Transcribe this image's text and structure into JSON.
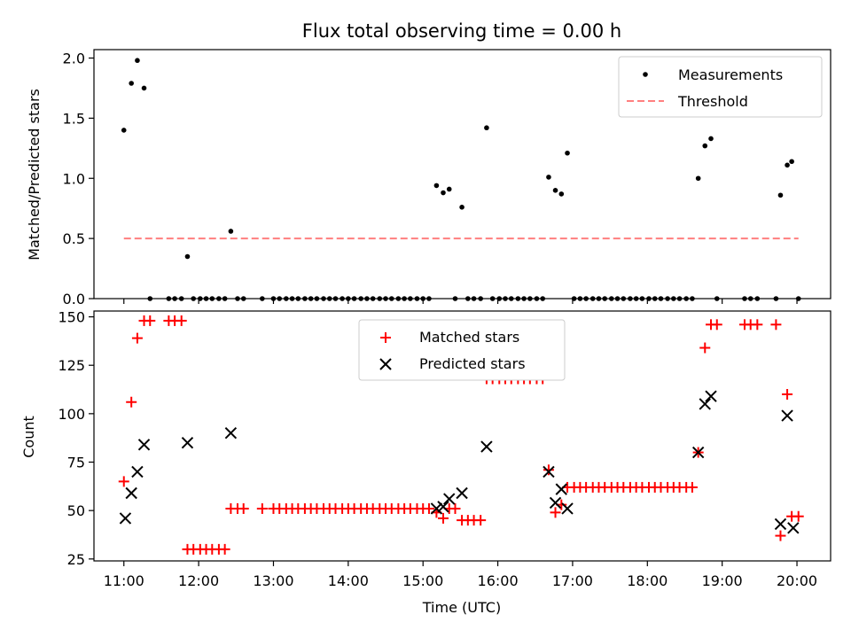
{
  "figure": {
    "title": "Flux total observing time = 0.00 h",
    "xlabel": "Time (UTC)"
  },
  "chart_data": [
    {
      "type": "scatter",
      "panel": "top",
      "title": "Flux total observing time = 0.00 h",
      "ylabel": "Matched/Predicted stars",
      "xlabel": "",
      "xlim": [
        10.6,
        20.45
      ],
      "ylim": [
        0,
        2.07
      ],
      "yticks": [
        0.0,
        0.5,
        1.0,
        1.5,
        2.0
      ],
      "ytick_labels": [
        "0.0",
        "0.5",
        "1.0",
        "1.5",
        "2.0"
      ],
      "xticks": [
        11,
        12,
        13,
        14,
        15,
        16,
        17,
        18,
        19,
        20
      ],
      "legend_position": "top-right",
      "grid": false,
      "series": [
        {
          "name": "Measurements",
          "kind": "points",
          "color": "#000000",
          "x": [
            11.0,
            11.1,
            11.18,
            11.27,
            11.35,
            11.6,
            11.68,
            11.77,
            11.85,
            11.93,
            12.02,
            12.1,
            12.18,
            12.27,
            12.35,
            12.43,
            12.52,
            12.6,
            12.85,
            13.0,
            13.08,
            13.17,
            13.25,
            13.33,
            13.42,
            13.5,
            13.58,
            13.67,
            13.75,
            13.83,
            13.92,
            14.0,
            14.08,
            14.17,
            14.25,
            14.33,
            14.42,
            14.5,
            14.58,
            14.67,
            14.75,
            14.83,
            14.92,
            15.0,
            15.08,
            15.18,
            15.27,
            15.35,
            15.43,
            15.52,
            15.6,
            15.68,
            15.77,
            15.85,
            15.93,
            16.02,
            16.1,
            16.18,
            16.27,
            16.35,
            16.43,
            16.52,
            16.6,
            16.68,
            16.77,
            16.85,
            16.93,
            17.02,
            17.1,
            17.18,
            17.27,
            17.35,
            17.43,
            17.52,
            17.6,
            17.68,
            17.77,
            17.85,
            17.93,
            18.02,
            18.1,
            18.18,
            18.27,
            18.35,
            18.43,
            18.52,
            18.6,
            18.68,
            18.77,
            18.85,
            18.93,
            19.3,
            19.38,
            19.47,
            19.72,
            19.78,
            19.87,
            19.93,
            20.02
          ],
          "y": [
            1.4,
            1.79,
            1.98,
            1.75,
            0.0,
            0.0,
            0.0,
            0.0,
            0.35,
            0.0,
            0.0,
            0.0,
            0.0,
            0.0,
            0.0,
            0.56,
            0.0,
            0.0,
            0.0,
            0.0,
            0.0,
            0.0,
            0.0,
            0.0,
            0.0,
            0.0,
            0.0,
            0.0,
            0.0,
            0.0,
            0.0,
            0.0,
            0.0,
            0.0,
            0.0,
            0.0,
            0.0,
            0.0,
            0.0,
            0.0,
            0.0,
            0.0,
            0.0,
            0.0,
            0.0,
            0.94,
            0.88,
            0.91,
            0.0,
            0.76,
            0.0,
            0.0,
            0.0,
            1.42,
            0.0,
            0.0,
            0.0,
            0.0,
            0.0,
            0.0,
            0.0,
            0.0,
            0.0,
            1.01,
            0.9,
            0.87,
            1.21,
            0.0,
            0.0,
            0.0,
            0.0,
            0.0,
            0.0,
            0.0,
            0.0,
            0.0,
            0.0,
            0.0,
            0.0,
            0.0,
            0.0,
            0.0,
            0.0,
            0.0,
            0.0,
            0.0,
            0.0,
            1.0,
            1.27,
            1.33,
            0.0,
            0.0,
            0.0,
            0.0,
            0.0,
            0.86,
            1.11,
            1.14,
            0.0
          ]
        },
        {
          "name": "Threshold",
          "kind": "dashed-line",
          "color": "#ff7f7f",
          "x": [
            11.0,
            20.02
          ],
          "y": [
            0.5,
            0.5
          ]
        }
      ]
    },
    {
      "type": "scatter",
      "panel": "bottom",
      "title": "",
      "ylabel": "Count",
      "xlabel": "Time (UTC)",
      "xlim": [
        10.6,
        20.45
      ],
      "ylim": [
        24,
        153
      ],
      "yticks": [
        25,
        50,
        75,
        100,
        125,
        150
      ],
      "ytick_labels": [
        "25",
        "50",
        "75",
        "100",
        "125",
        "150"
      ],
      "xticks": [
        11,
        12,
        13,
        14,
        15,
        16,
        17,
        18,
        19,
        20
      ],
      "xtick_labels": [
        "11:00",
        "12:00",
        "13:00",
        "14:00",
        "15:00",
        "16:00",
        "17:00",
        "18:00",
        "19:00",
        "20:00"
      ],
      "legend_position": "top-center",
      "grid": false,
      "series": [
        {
          "name": "Matched stars",
          "kind": "plus",
          "color": "#ff0000",
          "x": [
            11.0,
            11.1,
            11.18,
            11.27,
            11.35,
            11.6,
            11.68,
            11.77,
            11.85,
            11.93,
            12.02,
            12.1,
            12.18,
            12.27,
            12.35,
            12.43,
            12.52,
            12.6,
            12.85,
            13.0,
            13.08,
            13.17,
            13.25,
            13.33,
            13.42,
            13.5,
            13.58,
            13.67,
            13.75,
            13.83,
            13.92,
            14.0,
            14.08,
            14.17,
            14.25,
            14.33,
            14.42,
            14.5,
            14.58,
            14.67,
            14.75,
            14.83,
            14.92,
            15.0,
            15.08,
            15.18,
            15.27,
            15.35,
            15.43,
            15.52,
            15.6,
            15.68,
            15.77,
            15.85,
            15.93,
            16.02,
            16.1,
            16.18,
            16.27,
            16.35,
            16.43,
            16.52,
            16.6,
            16.68,
            16.77,
            16.85,
            16.93,
            17.02,
            17.1,
            17.18,
            17.27,
            17.35,
            17.43,
            17.52,
            17.6,
            17.68,
            17.77,
            17.85,
            17.93,
            18.02,
            18.1,
            18.18,
            18.27,
            18.35,
            18.43,
            18.52,
            18.6,
            18.68,
            18.77,
            18.85,
            18.93,
            19.3,
            19.38,
            19.47,
            19.72,
            19.78,
            19.87,
            19.93,
            20.02
          ],
          "y": [
            65,
            106,
            139,
            148,
            148,
            148,
            148,
            148,
            30,
            30,
            30,
            30,
            30,
            30,
            30,
            51,
            51,
            51,
            51,
            51,
            51,
            51,
            51,
            51,
            51,
            51,
            51,
            51,
            51,
            51,
            51,
            51,
            51,
            51,
            51,
            51,
            51,
            51,
            51,
            51,
            51,
            51,
            51,
            51,
            51,
            49,
            46,
            51,
            51,
            45,
            45,
            45,
            45,
            118,
            118,
            118,
            118,
            118,
            118,
            118,
            118,
            118,
            118,
            71,
            49,
            53,
            62,
            62,
            62,
            62,
            62,
            62,
            62,
            62,
            62,
            62,
            62,
            62,
            62,
            62,
            62,
            62,
            62,
            62,
            62,
            62,
            62,
            80,
            134,
            146,
            146,
            146,
            146,
            146,
            146,
            37,
            110,
            47,
            47
          ]
        },
        {
          "name": "Predicted stars",
          "kind": "x",
          "color": "#000000",
          "x": [
            11.02,
            11.1,
            11.18,
            11.27,
            11.85,
            12.43,
            15.18,
            15.27,
            15.35,
            15.52,
            15.85,
            16.68,
            16.77,
            16.85,
            16.93,
            18.68,
            18.77,
            18.85,
            19.78,
            19.87,
            19.95
          ],
          "y": [
            46,
            59,
            70,
            84,
            85,
            90,
            51,
            52,
            56,
            59,
            83,
            70,
            54,
            61,
            51,
            80,
            105,
            109,
            43,
            99,
            41
          ]
        }
      ]
    }
  ]
}
